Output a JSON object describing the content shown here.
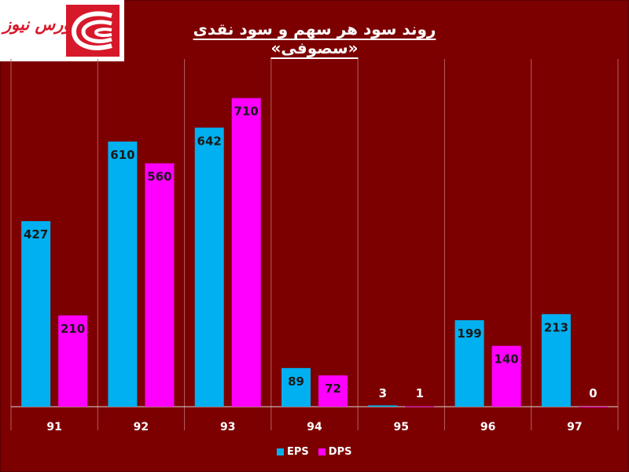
{
  "brand": {
    "logo_text": "بورس نیوز",
    "logo_color": "#d7182a"
  },
  "chart_data": {
    "type": "bar",
    "title": "روند سود هر سهم و سود نقدی «سصوفی»",
    "categories": [
      "91",
      "92",
      "93",
      "94",
      "95",
      "96",
      "97"
    ],
    "series": [
      {
        "name": "EPS",
        "color": "#00b0f0",
        "values": [
          427,
          610,
          642,
          89,
          3,
          199,
          213
        ]
      },
      {
        "name": "DPS",
        "color": "#ff00ff",
        "values": [
          210,
          560,
          710,
          72,
          1,
          140,
          0
        ]
      }
    ],
    "ylim": [
      0,
      800
    ],
    "grid": "vertical separators",
    "legend_position": "bottom",
    "xlabel": "",
    "ylabel": ""
  }
}
